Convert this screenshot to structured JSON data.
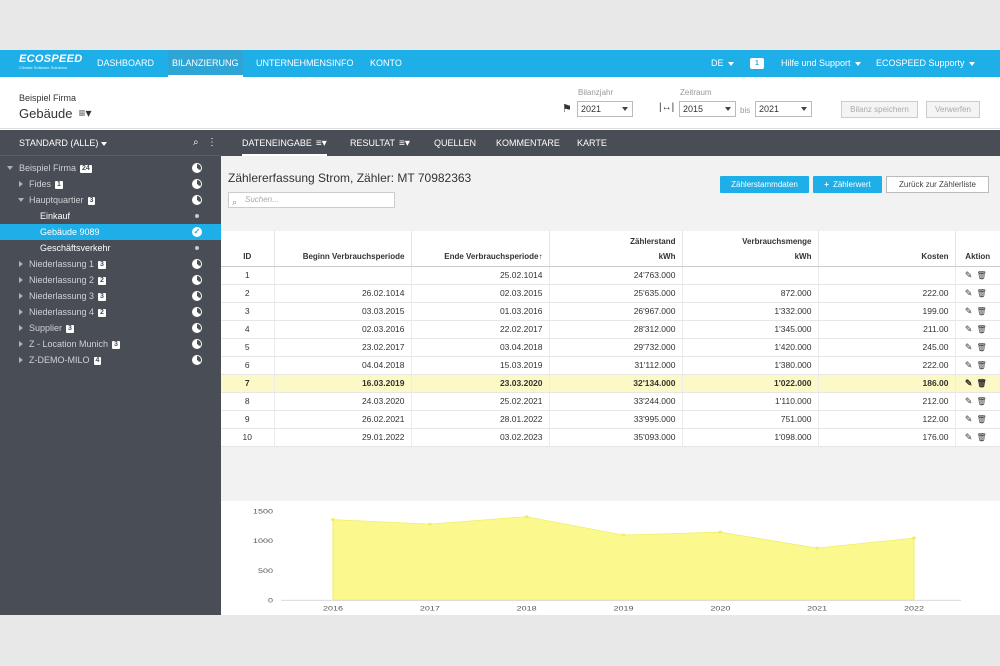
{
  "nav": {
    "logo": "ECOSPEED",
    "logo_sub": "Climate Software Solutions",
    "items": [
      "DASHBOARD",
      "BILANZIERUNG",
      "UNTERNEHMENSINFO",
      "KONTO"
    ],
    "lang": "DE",
    "chat_count": "1",
    "help": "Hilfe und Support",
    "user": "ECOSPEED Supporty"
  },
  "header": {
    "company": "Beispiel Firma",
    "entity": "Gebäude",
    "bilanzjahr_label": "Bilanzjahr",
    "bilanzjahr": "2021",
    "zeitraum_label": "Zeitraum",
    "zeitraum_from": "2015",
    "bis": "bis",
    "zeitraum_to": "2021",
    "save": "Bilanz speichern",
    "discard": "Verwerfen"
  },
  "sidebar": {
    "filter": "STANDARD (ALLE)",
    "items": [
      {
        "label": "Beispiel Firma",
        "badge": "24"
      },
      {
        "label": "Fides",
        "badge": "1"
      },
      {
        "label": "Hauptquartier",
        "badge": "3"
      },
      {
        "label": "Einkauf",
        "badge": ""
      },
      {
        "label": "Gebäude 9089",
        "badge": ""
      },
      {
        "label": "Geschäftsverkehr",
        "badge": ""
      },
      {
        "label": "Niederlassung 1",
        "badge": "3"
      },
      {
        "label": "Niederlassung 2",
        "badge": "2"
      },
      {
        "label": "Niederlassung 3",
        "badge": "3"
      },
      {
        "label": "Niederlassung 4",
        "badge": "2"
      },
      {
        "label": "Supplier",
        "badge": "3"
      },
      {
        "label": "Z - Location Munich",
        "badge": "3"
      },
      {
        "label": "Z-DEMO-MILO",
        "badge": "4"
      }
    ]
  },
  "tabs": [
    "DATENEINGABE",
    "RESULTAT",
    "QUELLEN",
    "KOMMENTARE",
    "KARTE"
  ],
  "content": {
    "title": "Zählererfassung Strom, Zähler: MT 70982363",
    "search_placeholder": "Suchen...",
    "btn_stamm": "Zählerstammdaten",
    "btn_add": "Zählerwert",
    "btn_back": "Zurück zur Zählerliste"
  },
  "table": {
    "headers": {
      "id": "ID",
      "begin": "Beginn Verbrauchsperiode",
      "end": "Ende Verbrauchsperiode↑",
      "stand1": "Zählerstand",
      "stand2": "kWh",
      "menge1": "Verbrauchsmenge",
      "menge2": "kWh",
      "kosten": "Kosten",
      "aktion": "Aktion"
    },
    "rows": [
      {
        "id": "1",
        "begin": "",
        "end": "25.02.1014",
        "stand": "24'763.000",
        "menge": "",
        "kosten": ""
      },
      {
        "id": "2",
        "begin": "26.02.1014",
        "end": "02.03.2015",
        "stand": "25'635.000",
        "menge": "872.000",
        "kosten": "222.00"
      },
      {
        "id": "3",
        "begin": "03.03.2015",
        "end": "01.03.2016",
        "stand": "26'967.000",
        "menge": "1'332.000",
        "kosten": "199.00"
      },
      {
        "id": "4",
        "begin": "02.03.2016",
        "end": "22.02.2017",
        "stand": "28'312.000",
        "menge": "1'345.000",
        "kosten": "211.00"
      },
      {
        "id": "5",
        "begin": "23.02.2017",
        "end": "03.04.2018",
        "stand": "29'732.000",
        "menge": "1'420.000",
        "kosten": "245.00"
      },
      {
        "id": "6",
        "begin": "04.04.2018",
        "end": "15.03.2019",
        "stand": "31'112.000",
        "menge": "1'380.000",
        "kosten": "222.00"
      },
      {
        "id": "7",
        "begin": "16.03.2019",
        "end": "23.03.2020",
        "stand": "32'134.000",
        "menge": "1'022.000",
        "kosten": "186.00"
      },
      {
        "id": "8",
        "begin": "24.03.2020",
        "end": "25.02.2021",
        "stand": "33'244.000",
        "menge": "1'110.000",
        "kosten": "212.00"
      },
      {
        "id": "9",
        "begin": "26.02.2021",
        "end": "28.01.2022",
        "stand": "33'995.000",
        "menge": "751.000",
        "kosten": "122.00"
      },
      {
        "id": "10",
        "begin": "29.01.2022",
        "end": "03.02.2023",
        "stand": "35'093.000",
        "menge": "1'098.000",
        "kosten": "176.00"
      }
    ],
    "highlight_row": 6
  },
  "chart_data": {
    "type": "area",
    "x": [
      "2016",
      "2017",
      "2018",
      "2019",
      "2020",
      "2021",
      "2022"
    ],
    "series": [
      {
        "values": [
          1360,
          1285,
          1410,
          1100,
          1150,
          880,
          1050
        ]
      }
    ],
    "ylim": [
      0,
      1500
    ],
    "yticks": [
      "1500",
      "1000",
      "500",
      "0"
    ],
    "fill": "#fbf98e",
    "grid": false
  },
  "colors": {
    "brand": "#1eaee8",
    "sidebar": "#494d55",
    "highlight": "#fcf9c7"
  }
}
